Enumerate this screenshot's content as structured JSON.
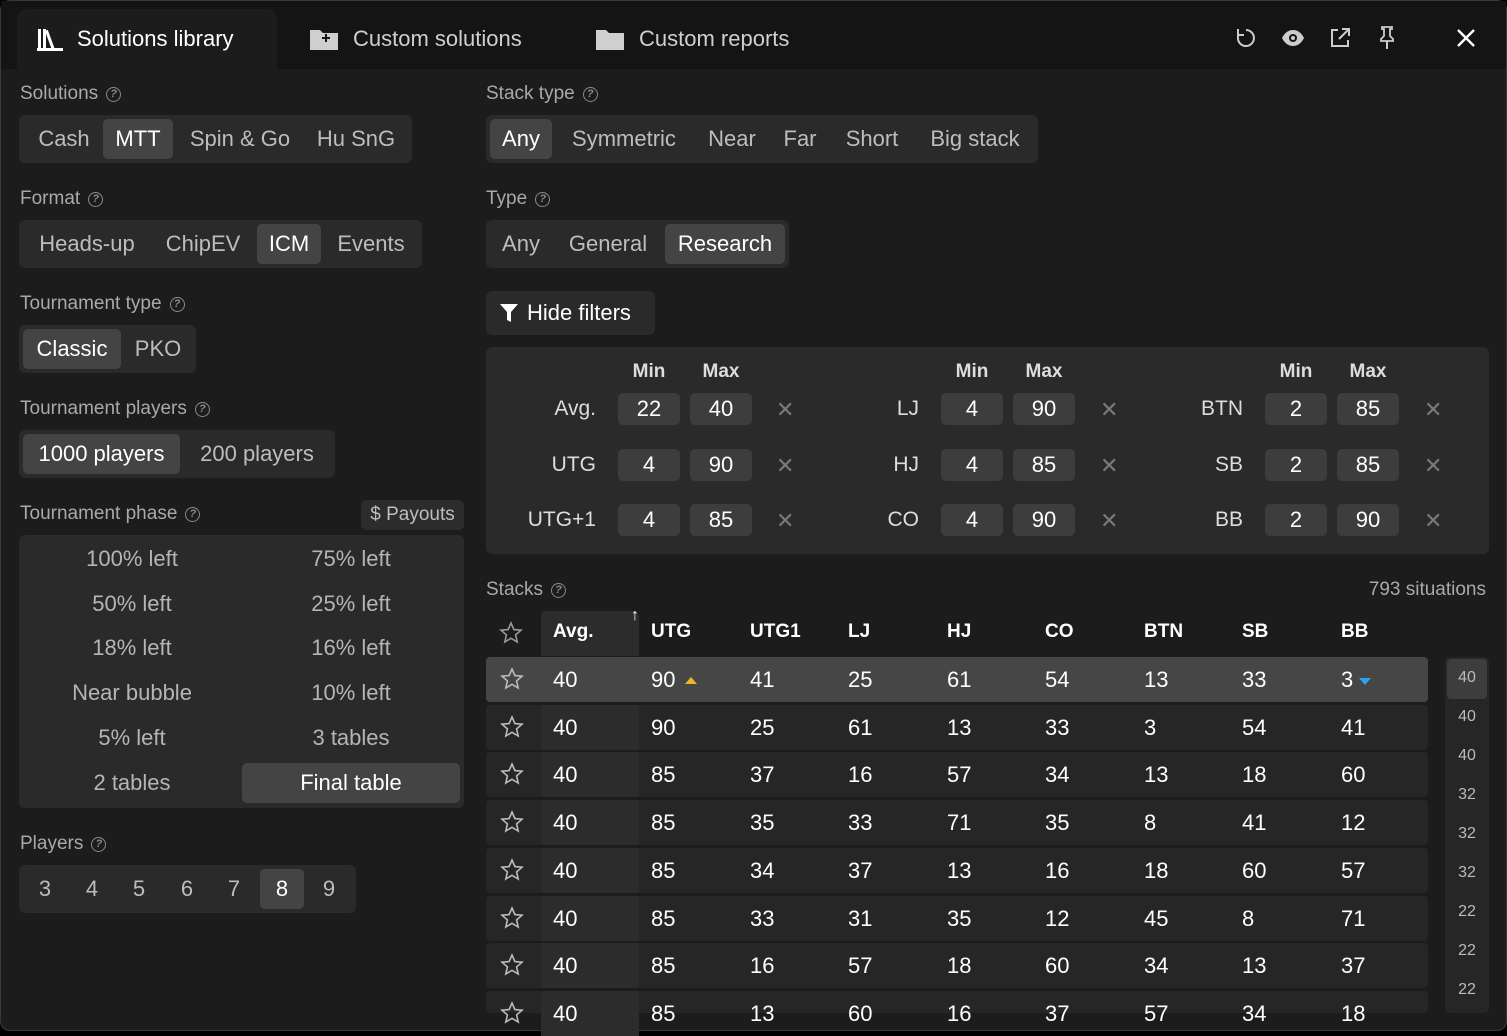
{
  "tabs": [
    {
      "label": "Solutions library",
      "icon": "library-icon",
      "active": true
    },
    {
      "label": "Custom solutions",
      "icon": "folder-plus-icon",
      "active": false
    },
    {
      "label": "Custom reports",
      "icon": "folder-icon",
      "active": false
    }
  ],
  "toolbar_icons": [
    "refresh-icon",
    "eye-icon",
    "open-external-icon",
    "pin-icon",
    "close-icon"
  ],
  "solutions": {
    "label": "Solutions",
    "options": [
      "Cash",
      "MTT",
      "Spin & Go",
      "Hu SnG"
    ],
    "selected": "MTT"
  },
  "format": {
    "label": "Format",
    "options": [
      "Heads-up",
      "ChipEV",
      "ICM",
      "Events"
    ],
    "selected": "ICM"
  },
  "tournament_type": {
    "label": "Tournament type",
    "options": [
      "Classic",
      "PKO"
    ],
    "selected": "Classic"
  },
  "tournament_players": {
    "label": "Tournament players",
    "options": [
      "1000 players",
      "200 players"
    ],
    "selected": "1000 players"
  },
  "tournament_phase": {
    "label": "Tournament phase",
    "payouts_label": "$ Payouts",
    "options": [
      "100% left",
      "75% left",
      "50% left",
      "25% left",
      "18% left",
      "16% left",
      "Near bubble",
      "10% left",
      "5% left",
      "3 tables",
      "2 tables",
      "Final table"
    ],
    "selected": "Final table"
  },
  "players": {
    "label": "Players",
    "options": [
      "3",
      "4",
      "5",
      "6",
      "7",
      "8",
      "9"
    ],
    "selected": "8"
  },
  "stack_type": {
    "label": "Stack type",
    "options": [
      "Any",
      "Symmetric",
      "Near",
      "Far",
      "Short",
      "Big stack"
    ],
    "selected": "Any"
  },
  "type": {
    "label": "Type",
    "options": [
      "Any",
      "General",
      "Research"
    ],
    "selected": "Research"
  },
  "hide_filters_label": "Hide filters",
  "filters": {
    "min_label": "Min",
    "max_label": "Max",
    "clear_glyph": "✕",
    "columns": [
      [
        {
          "pos": "Avg.",
          "min": "22",
          "max": "40"
        },
        {
          "pos": "UTG",
          "min": "4",
          "max": "90"
        },
        {
          "pos": "UTG+1",
          "min": "4",
          "max": "85"
        }
      ],
      [
        {
          "pos": "LJ",
          "min": "4",
          "max": "90"
        },
        {
          "pos": "HJ",
          "min": "4",
          "max": "85"
        },
        {
          "pos": "CO",
          "min": "4",
          "max": "90"
        }
      ],
      [
        {
          "pos": "BTN",
          "min": "2",
          "max": "85"
        },
        {
          "pos": "SB",
          "min": "2",
          "max": "85"
        },
        {
          "pos": "BB",
          "min": "2",
          "max": "90"
        }
      ]
    ]
  },
  "stacks": {
    "label": "Stacks",
    "situations": "793 situations",
    "sort_glyph": "↑",
    "headers": [
      "Avg.",
      "UTG",
      "UTG1",
      "LJ",
      "HJ",
      "CO",
      "BTN",
      "SB",
      "BB"
    ],
    "rows": [
      [
        "40",
        "90",
        "41",
        "25",
        "61",
        "54",
        "13",
        "33",
        "3"
      ],
      [
        "40",
        "90",
        "25",
        "61",
        "13",
        "33",
        "3",
        "54",
        "41"
      ],
      [
        "40",
        "85",
        "37",
        "16",
        "57",
        "34",
        "13",
        "18",
        "60"
      ],
      [
        "40",
        "85",
        "35",
        "33",
        "71",
        "35",
        "8",
        "41",
        "12"
      ],
      [
        "40",
        "85",
        "34",
        "37",
        "13",
        "16",
        "18",
        "60",
        "57"
      ],
      [
        "40",
        "85",
        "33",
        "31",
        "35",
        "12",
        "45",
        "8",
        "71"
      ],
      [
        "40",
        "85",
        "16",
        "57",
        "18",
        "60",
        "34",
        "13",
        "37"
      ],
      [
        "40",
        "85",
        "13",
        "60",
        "16",
        "37",
        "57",
        "34",
        "18"
      ]
    ],
    "scroll_index": [
      "40",
      "40",
      "40",
      "32",
      "32",
      "32",
      "22",
      "22",
      "22"
    ],
    "up_color": "#f0b429",
    "down_color": "#2ea3f2"
  }
}
